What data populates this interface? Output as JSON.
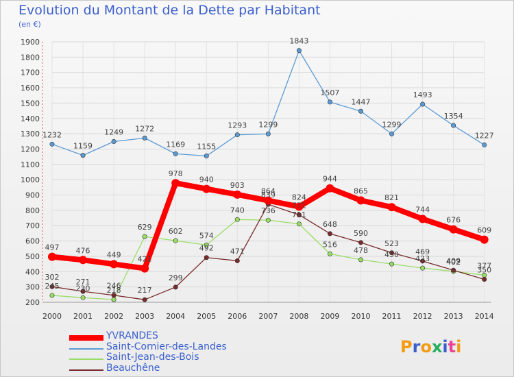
{
  "title": "Evolution du Montant de la Dette par Habitant",
  "unit": "(en €)",
  "logo": {
    "text": "Proxiti",
    "colors": [
      "#f39c12",
      "#3a5fcd",
      "#f39c12",
      "#27ae60",
      "#3a5fcd",
      "#e84393",
      "#f39c12"
    ]
  },
  "chart_data": {
    "type": "line",
    "title": "Evolution du Montant de la Dette par Habitant",
    "ylabel": "(en €)",
    "xlabel": "",
    "ylim": [
      200,
      1900
    ],
    "yticks": [
      200,
      300,
      400,
      500,
      600,
      700,
      800,
      900,
      1000,
      1100,
      1200,
      1300,
      1400,
      1500,
      1600,
      1700,
      1800,
      1900
    ],
    "grid": true,
    "legend_position": "bottom-left",
    "x": [
      "2000",
      "2001",
      "2002",
      "2003",
      "2004",
      "2005",
      "2006",
      "2007",
      "2008",
      "2009",
      "2010",
      "2011",
      "2012",
      "2013",
      "2014"
    ],
    "series": [
      {
        "name": "Saint-Cornier-des-Landes",
        "color": "#5b9bd5",
        "values": [
          1232,
          1159,
          1249,
          1272,
          1169,
          1155,
          1293,
          1299,
          1843,
          1507,
          1447,
          1299,
          1493,
          1354,
          1227
        ]
      },
      {
        "name": "Saint-Jean-des-Bois",
        "color": "#99dd66",
        "values": [
          245,
          230,
          218,
          629,
          602,
          574,
          740,
          736,
          711,
          516,
          478,
          450,
          423,
          402,
          377
        ]
      },
      {
        "name": "Beauchêne",
        "color": "#7a2a2a",
        "values": [
          302,
          271,
          246,
          217,
          299,
          492,
          471,
          839,
          771,
          648,
          590,
          523,
          469,
          409,
          350
        ]
      },
      {
        "name": "YVRANDES",
        "color": "#ff0000",
        "values": [
          497,
          476,
          449,
          421,
          978,
          940,
          903,
          864,
          824,
          944,
          865,
          821,
          744,
          676,
          609
        ]
      }
    ]
  }
}
